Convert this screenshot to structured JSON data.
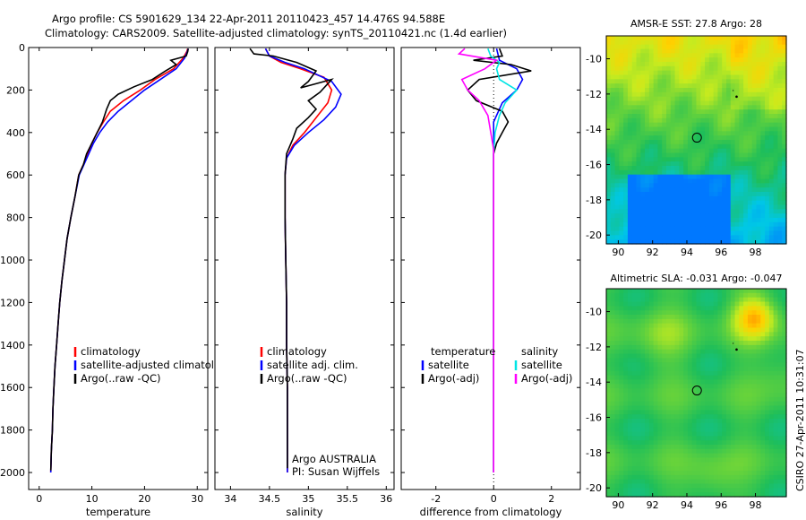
{
  "header": {
    "line1": "Argo profile: CS 5901629_134 22-Apr-2011 20110423_457 14.476S 94.588E",
    "line2": "Climatology: CARS2009. Satellite-adjusted climatology: synTS_20110421.nc (1.4d earlier)"
  },
  "footer_text": "CSIRO 27-Apr-2011 10:31:07",
  "colors": {
    "climatology": "#ff0000",
    "satellite": "#0000ff",
    "argo": "#000000",
    "cyan": "#00e5e5",
    "magenta": "#ff00ff"
  },
  "chart_data": [
    {
      "id": "temperature",
      "type": "line",
      "xlabel": "temperature",
      "ylabel": "",
      "xlim": [
        -2,
        32
      ],
      "ylim": [
        2080,
        0
      ],
      "xticks": [
        0,
        10,
        20,
        30
      ],
      "yticks": [
        0,
        200,
        400,
        600,
        800,
        1000,
        1200,
        1400,
        1600,
        1800,
        2000
      ],
      "legend": {
        "position": "bottom-left",
        "entries": [
          {
            "label": "climatology",
            "color": "#ff0000"
          },
          {
            "label": "satellite-adjusted climatology",
            "color": "#0000ff"
          },
          {
            "label": "Argo(..raw -QC)",
            "color": "#000000"
          }
        ]
      },
      "series": [
        {
          "color": "#ff0000",
          "points": [
            [
              28.2,
              5
            ],
            [
              28.0,
              20
            ],
            [
              27.3,
              50
            ],
            [
              25.5,
              100
            ],
            [
              22.0,
              150
            ],
            [
              19.2,
              200
            ],
            [
              16.0,
              250
            ],
            [
              13.5,
              300
            ],
            [
              12.2,
              350
            ],
            [
              11.0,
              400
            ],
            [
              10.0,
              450
            ],
            [
              9.2,
              500
            ],
            [
              8.4,
              550
            ],
            [
              7.5,
              600
            ],
            [
              6.8,
              700
            ],
            [
              6.0,
              800
            ],
            [
              5.3,
              900
            ],
            [
              4.8,
              1000
            ],
            [
              4.3,
              1100
            ],
            [
              3.9,
              1200
            ],
            [
              3.6,
              1300
            ],
            [
              3.3,
              1400
            ],
            [
              3.0,
              1500
            ],
            [
              2.8,
              1600
            ],
            [
              2.6,
              1700
            ],
            [
              2.5,
              1800
            ],
            [
              2.3,
              1900
            ],
            [
              2.2,
              2000
            ]
          ]
        },
        {
          "color": "#0000ff",
          "points": [
            [
              28.3,
              5
            ],
            [
              28.1,
              20
            ],
            [
              27.6,
              50
            ],
            [
              26.0,
              100
            ],
            [
              23.0,
              150
            ],
            [
              20.0,
              200
            ],
            [
              17.5,
              250
            ],
            [
              15.0,
              300
            ],
            [
              13.0,
              350
            ],
            [
              11.5,
              400
            ],
            [
              10.3,
              450
            ],
            [
              9.4,
              500
            ],
            [
              8.5,
              550
            ],
            [
              7.6,
              600
            ],
            [
              6.8,
              700
            ],
            [
              6.0,
              800
            ],
            [
              5.3,
              900
            ],
            [
              4.8,
              1000
            ],
            [
              4.3,
              1100
            ],
            [
              3.9,
              1200
            ],
            [
              3.6,
              1300
            ],
            [
              3.3,
              1400
            ],
            [
              3.0,
              1500
            ],
            [
              2.8,
              1600
            ],
            [
              2.6,
              1700
            ],
            [
              2.5,
              1800
            ],
            [
              2.3,
              1900
            ],
            [
              2.2,
              2000
            ]
          ]
        },
        {
          "color": "#000000",
          "points": [
            [
              28.3,
              5
            ],
            [
              28.2,
              20
            ],
            [
              27.9,
              40
            ],
            [
              25.0,
              60
            ],
            [
              26.0,
              80
            ],
            [
              24.0,
              110
            ],
            [
              21.5,
              150
            ],
            [
              18.0,
              185
            ],
            [
              15.0,
              220
            ],
            [
              13.5,
              250
            ],
            [
              12.8,
              290
            ],
            [
              12.0,
              350
            ],
            [
              11.0,
              400
            ],
            [
              10.0,
              450
            ],
            [
              9.0,
              500
            ],
            [
              8.4,
              550
            ],
            [
              7.5,
              600
            ],
            [
              6.8,
              700
            ],
            [
              6.0,
              800
            ],
            [
              5.3,
              900
            ],
            [
              4.8,
              1000
            ],
            [
              4.3,
              1100
            ],
            [
              3.9,
              1200
            ],
            [
              3.6,
              1300
            ],
            [
              3.3,
              1400
            ],
            [
              3.0,
              1500
            ],
            [
              2.8,
              1600
            ],
            [
              2.6,
              1700
            ],
            [
              2.5,
              1800
            ],
            [
              2.3,
              1900
            ],
            [
              2.2,
              1990
            ]
          ]
        }
      ]
    },
    {
      "id": "salinity",
      "type": "line",
      "xlabel": "salinity",
      "ylabel": "",
      "xlim": [
        33.8,
        36.1
      ],
      "ylim": [
        2080,
        0
      ],
      "xticks": [
        34,
        34.5,
        35,
        35.5,
        36
      ],
      "xtick_labels": [
        "34",
        "34.5",
        "35",
        "35.5",
        "36"
      ],
      "legend": {
        "position": "bottom-left",
        "entries": [
          {
            "label": "climatology",
            "color": "#ff0000"
          },
          {
            "label": "satellite adj. clim.",
            "color": "#0000ff"
          },
          {
            "label": "Argo(..raw -QC)",
            "color": "#000000"
          }
        ]
      },
      "annotations": [
        "Argo AUSTRALIA",
        "PI: Susan Wijffels"
      ],
      "series": [
        {
          "color": "#ff0000",
          "points": [
            [
              34.45,
              5
            ],
            [
              34.5,
              40
            ],
            [
              34.65,
              70
            ],
            [
              34.9,
              100
            ],
            [
              35.2,
              140
            ],
            [
              35.3,
              200
            ],
            [
              35.25,
              260
            ],
            [
              35.1,
              330
            ],
            [
              34.95,
              400
            ],
            [
              34.8,
              460
            ],
            [
              34.72,
              520
            ],
            [
              34.7,
              600
            ],
            [
              34.7,
              800
            ],
            [
              34.71,
              1000
            ],
            [
              34.72,
              1200
            ],
            [
              34.72,
              1400
            ],
            [
              34.73,
              1600
            ],
            [
              34.73,
              1800
            ],
            [
              34.73,
              2000
            ]
          ]
        },
        {
          "color": "#0000ff",
          "points": [
            [
              34.45,
              5
            ],
            [
              34.5,
              40
            ],
            [
              34.7,
              70
            ],
            [
              34.95,
              100
            ],
            [
              35.3,
              160
            ],
            [
              35.42,
              220
            ],
            [
              35.35,
              280
            ],
            [
              35.2,
              340
            ],
            [
              35.0,
              400
            ],
            [
              34.82,
              460
            ],
            [
              34.72,
              520
            ],
            [
              34.7,
              600
            ],
            [
              34.7,
              800
            ],
            [
              34.71,
              1000
            ],
            [
              34.72,
              1200
            ],
            [
              34.72,
              1400
            ],
            [
              34.73,
              1600
            ],
            [
              34.73,
              1800
            ],
            [
              34.73,
              2000
            ]
          ]
        },
        {
          "color": "#000000",
          "points": [
            [
              34.25,
              5
            ],
            [
              34.3,
              30
            ],
            [
              34.55,
              40
            ],
            [
              34.85,
              70
            ],
            [
              35.1,
              110
            ],
            [
              35.0,
              160
            ],
            [
              34.9,
              190
            ],
            [
              35.3,
              150
            ],
            [
              35.15,
              210
            ],
            [
              35.0,
              250
            ],
            [
              35.1,
              290
            ],
            [
              35.0,
              330
            ],
            [
              34.85,
              380
            ],
            [
              34.8,
              430
            ],
            [
              34.72,
              500
            ],
            [
              34.7,
              600
            ],
            [
              34.7,
              800
            ],
            [
              34.71,
              1000
            ],
            [
              34.72,
              1200
            ],
            [
              34.72,
              1400
            ],
            [
              34.73,
              1600
            ],
            [
              34.73,
              1800
            ],
            [
              34.73,
              1980
            ]
          ]
        }
      ]
    },
    {
      "id": "difference",
      "type": "line",
      "xlabel": "difference from climatology",
      "ylabel": "",
      "xlim": [
        -3.2,
        3.0
      ],
      "ylim": [
        2080,
        0
      ],
      "xticks": [
        -2,
        0,
        2
      ],
      "legend": {
        "position": "bottom",
        "columns": [
          {
            "heading": "temperature",
            "entries": [
              {
                "label": "satellite",
                "color": "#0000ff"
              },
              {
                "label": "Argo(-adj)",
                "color": "#000000"
              }
            ]
          },
          {
            "heading": "salinity",
            "entries": [
              {
                "label": "satellite",
                "color": "#00e5e5"
              },
              {
                "label": "Argo(-adj)",
                "color": "#ff00ff"
              }
            ]
          }
        ]
      },
      "series": [
        {
          "color": "#0000ff",
          "points": [
            [
              0.1,
              5
            ],
            [
              0.2,
              60
            ],
            [
              0.8,
              100
            ],
            [
              1.0,
              150
            ],
            [
              0.8,
              200
            ],
            [
              0.3,
              260
            ],
            [
              0.0,
              350
            ],
            [
              0.0,
              2000
            ]
          ]
        },
        {
          "color": "#000000",
          "points": [
            [
              0.2,
              5
            ],
            [
              0.3,
              40
            ],
            [
              -0.7,
              60
            ],
            [
              0.6,
              80
            ],
            [
              1.3,
              110
            ],
            [
              -0.5,
              150
            ],
            [
              -0.9,
              200
            ],
            [
              -0.6,
              250
            ],
            [
              0.3,
              300
            ],
            [
              0.5,
              350
            ],
            [
              0.3,
              400
            ],
            [
              0.1,
              450
            ],
            [
              0.0,
              500
            ],
            [
              0.0,
              2000
            ]
          ]
        },
        {
          "color": "#00e5e5",
          "points": [
            [
              -0.2,
              5
            ],
            [
              -0.1,
              40
            ],
            [
              0.2,
              70
            ],
            [
              0.1,
              100
            ],
            [
              0.2,
              150
            ],
            [
              0.8,
              200
            ],
            [
              0.4,
              260
            ],
            [
              0.2,
              320
            ],
            [
              0.05,
              400
            ],
            [
              0.0,
              500
            ],
            [
              0.0,
              2000
            ]
          ]
        },
        {
          "color": "#ff00ff",
          "points": [
            [
              -1.0,
              5
            ],
            [
              -1.2,
              30
            ],
            [
              0.1,
              60
            ],
            [
              -0.3,
              100
            ],
            [
              -1.1,
              150
            ],
            [
              -0.9,
              200
            ],
            [
              -0.5,
              250
            ],
            [
              -0.2,
              320
            ],
            [
              -0.1,
              400
            ],
            [
              0.0,
              480
            ],
            [
              0.0,
              2000
            ]
          ]
        }
      ]
    },
    {
      "id": "sst",
      "type": "heatmap",
      "title": "AMSR-E SST: 27.8 Argo: 28",
      "xlim": [
        89.3,
        99.8
      ],
      "ylim": [
        -20.5,
        -8.7
      ],
      "xticks": [
        90,
        92,
        94,
        96,
        98
      ],
      "yticks": [
        -10,
        -12,
        -14,
        -16,
        -18,
        -20
      ],
      "marker_circle": [
        94.588,
        -14.476
      ],
      "track_points": [
        [
          96.7,
          -11.8
        ],
        [
          96.9,
          -12.15
        ]
      ]
    },
    {
      "id": "sla",
      "type": "heatmap",
      "title": "Altimetric SLA: -0.031 Argo: -0.047",
      "xlim": [
        89.3,
        99.8
      ],
      "ylim": [
        -20.5,
        -8.7
      ],
      "xticks": [
        90,
        92,
        94,
        96,
        98
      ],
      "yticks": [
        -10,
        -12,
        -14,
        -16,
        -18,
        -20
      ],
      "marker_circle": [
        94.588,
        -14.476
      ],
      "track_points": [
        [
          96.7,
          -11.8
        ],
        [
          96.9,
          -12.15
        ]
      ]
    }
  ]
}
